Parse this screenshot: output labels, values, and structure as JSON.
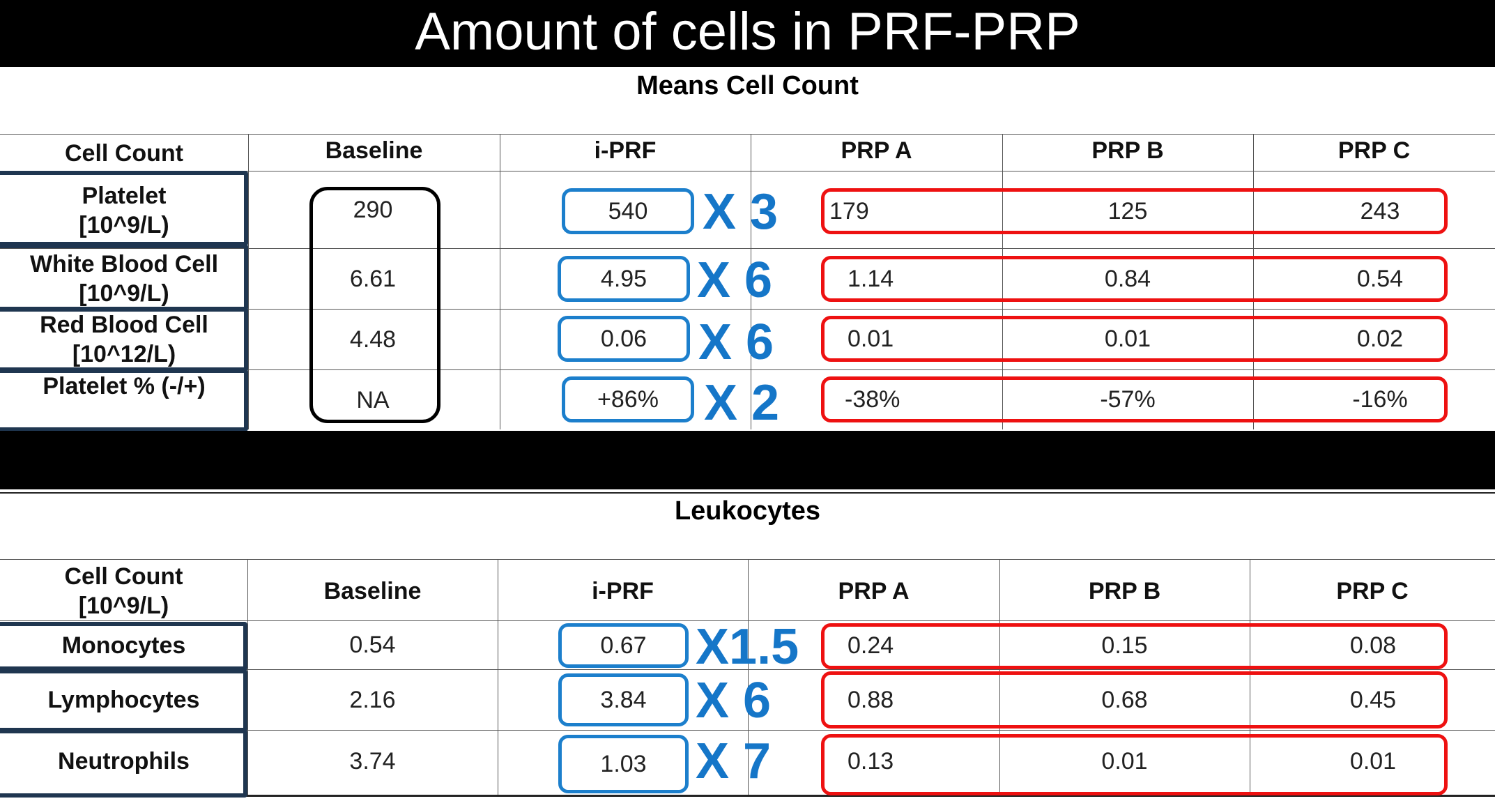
{
  "title": "Amount of cells in PRF-PRP",
  "colors": {
    "baseline_box": "#000000",
    "iprf_box": "#1c7fcc",
    "prp_box": "#ee1111",
    "label_box": "#1f3650",
    "multiplier_text": "#1576c8"
  },
  "table1": {
    "caption": "Means Cell Count",
    "headers": [
      "Cell Count",
      "Baseline",
      "i-PRF",
      "PRP A",
      "PRP B",
      "PRP C"
    ],
    "rows": [
      {
        "label_line1": "Platelet",
        "label_line2": "[10^9/L)",
        "baseline": "290",
        "iprf": "540",
        "multiplier": "X 3",
        "prp_a": "179",
        "prp_b": "125",
        "prp_c": "243"
      },
      {
        "label_line1": "White Blood Cell",
        "label_line2": "[10^9/L)",
        "baseline": "6.61",
        "iprf": "4.95",
        "multiplier": "X 6",
        "prp_a": "1.14",
        "prp_b": "0.84",
        "prp_c": "0.54"
      },
      {
        "label_line1": "Red Blood Cell",
        "label_line2": "[10^12/L)",
        "baseline": "4.48",
        "iprf": "0.06",
        "multiplier": "X 6",
        "prp_a": "0.01",
        "prp_b": "0.01",
        "prp_c": "0.02"
      },
      {
        "label_line1": "Platelet % (-/+)",
        "label_line2": "",
        "baseline": "NA",
        "iprf": "+86%",
        "multiplier": "X 2",
        "prp_a": "-38%",
        "prp_b": "-57%",
        "prp_c": "-16%"
      }
    ]
  },
  "table2": {
    "caption": "Leukocytes",
    "header_first_line1": "Cell Count",
    "header_first_line2": "[10^9/L)",
    "headers": [
      "Baseline",
      "i-PRF",
      "PRP A",
      "PRP B",
      "PRP C"
    ],
    "rows": [
      {
        "label": "Monocytes",
        "baseline": "0.54",
        "iprf": "0.67",
        "multiplier": "X1.5",
        "prp_a": "0.24",
        "prp_b": "0.15",
        "prp_c": "0.08"
      },
      {
        "label": "Lymphocytes",
        "baseline": "2.16",
        "iprf": "3.84",
        "multiplier": "X 6",
        "prp_a": "0.88",
        "prp_b": "0.68",
        "prp_c": "0.45"
      },
      {
        "label": "Neutrophils",
        "baseline": "3.74",
        "iprf": "1.03",
        "multiplier": "X 7",
        "prp_a": "0.13",
        "prp_b": "0.01",
        "prp_c": "0.01"
      }
    ]
  }
}
